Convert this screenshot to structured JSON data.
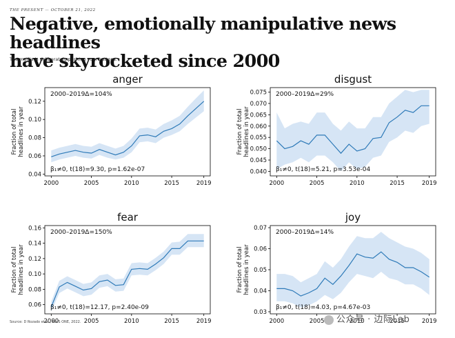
{
  "header": {
    "kicker": "THE PRESENT — OCTOBER 21, 2022",
    "title_line1": "Negative, emotionally manipulative news headlines",
    "title_line2": "have skyrocketed since 2000",
    "subtitle": "The media is deliberately pushing your buttons."
  },
  "source": "Source: D Rozado et al., PLoS ONE, 2022.",
  "watermark": "公众号 · 边际Lab",
  "colors": {
    "line": "#2e7ab8",
    "band": "#cfe0f3",
    "axis": "#000000"
  },
  "chart_data": [
    {
      "type": "line",
      "title": "anger",
      "annotation_top": "2000–2019Δ=104%",
      "annotation_bottom": "β₁≠0, t(18)=9.30, p=1.62e-07",
      "ylabel": "Fraction of total\nheadlines in year",
      "x": [
        2000,
        2001,
        2002,
        2003,
        2004,
        2005,
        2006,
        2007,
        2008,
        2009,
        2010,
        2011,
        2012,
        2013,
        2014,
        2015,
        2016,
        2017,
        2018,
        2019
      ],
      "y": [
        0.059,
        0.062,
        0.064,
        0.066,
        0.064,
        0.063,
        0.067,
        0.064,
        0.061,
        0.064,
        0.071,
        0.082,
        0.083,
        0.081,
        0.087,
        0.09,
        0.095,
        0.104,
        0.112,
        0.12
      ],
      "lower": [
        0.053,
        0.056,
        0.058,
        0.06,
        0.058,
        0.057,
        0.061,
        0.058,
        0.056,
        0.058,
        0.064,
        0.075,
        0.076,
        0.074,
        0.08,
        0.083,
        0.087,
        0.095,
        0.102,
        0.109
      ],
      "upper": [
        0.066,
        0.069,
        0.071,
        0.073,
        0.071,
        0.07,
        0.074,
        0.071,
        0.068,
        0.071,
        0.079,
        0.09,
        0.091,
        0.089,
        0.095,
        0.099,
        0.104,
        0.114,
        0.123,
        0.132
      ],
      "xticks": [
        2000,
        2005,
        2010,
        2015,
        2019
      ],
      "yticks": [
        0.04,
        0.06,
        0.08,
        0.1,
        0.12
      ],
      "ytick_labels": [
        "0.04",
        "0.06",
        "0.08",
        "0.10",
        "0.12"
      ],
      "xlim": [
        1999.2,
        2019.8
      ],
      "ylim": [
        0.038,
        0.135
      ]
    },
    {
      "type": "line",
      "title": "disgust",
      "annotation_top": "2000–2019Δ=29%",
      "annotation_bottom": "β₁≠0, t(18)=5.21, p=3.53e-04",
      "ylabel": "Fraction of total\nheadlines in year",
      "x": [
        2000,
        2001,
        2002,
        2003,
        2004,
        2005,
        2006,
        2007,
        2008,
        2009,
        2010,
        2011,
        2012,
        2013,
        2014,
        2015,
        2016,
        2017,
        2018,
        2019
      ],
      "y": [
        0.0535,
        0.05,
        0.051,
        0.0535,
        0.052,
        0.056,
        0.056,
        0.052,
        0.048,
        0.052,
        0.049,
        0.05,
        0.0545,
        0.055,
        0.0615,
        0.064,
        0.067,
        0.066,
        0.069,
        0.069
      ],
      "lower": [
        0.041,
        0.043,
        0.044,
        0.046,
        0.044,
        0.047,
        0.047,
        0.044,
        0.04,
        0.044,
        0.041,
        0.042,
        0.046,
        0.047,
        0.053,
        0.055,
        0.058,
        0.057,
        0.06,
        0.061
      ],
      "upper": [
        0.066,
        0.059,
        0.061,
        0.062,
        0.061,
        0.066,
        0.066,
        0.061,
        0.058,
        0.062,
        0.059,
        0.059,
        0.064,
        0.064,
        0.07,
        0.073,
        0.076,
        0.075,
        0.076,
        0.076
      ],
      "xticks": [
        2000,
        2005,
        2010,
        2015,
        2019
      ],
      "yticks": [
        0.04,
        0.045,
        0.05,
        0.055,
        0.06,
        0.065,
        0.07,
        0.075
      ],
      "ytick_labels": [
        "0.040",
        "0.045",
        "0.050",
        "0.055",
        "0.060",
        "0.065",
        "0.070",
        "0.075"
      ],
      "xlim": [
        1999.2,
        2019.8
      ],
      "ylim": [
        0.038,
        0.077
      ]
    },
    {
      "type": "line",
      "title": "fear",
      "annotation_top": "2000–2019Δ=150%",
      "annotation_bottom": "β₁≠0, t(18)=12.17, p=2.40e-09",
      "ylabel": "Fraction of total\nheadlines in year",
      "x": [
        2000,
        2001,
        2002,
        2003,
        2004,
        2005,
        2006,
        2007,
        2008,
        2009,
        2010,
        2011,
        2012,
        2013,
        2014,
        2015,
        2016,
        2017,
        2018,
        2019
      ],
      "y": [
        0.057,
        0.083,
        0.089,
        0.084,
        0.079,
        0.081,
        0.09,
        0.092,
        0.085,
        0.086,
        0.106,
        0.107,
        0.106,
        0.113,
        0.121,
        0.133,
        0.133,
        0.143,
        0.143,
        0.143
      ],
      "lower": [
        0.051,
        0.075,
        0.081,
        0.076,
        0.071,
        0.073,
        0.082,
        0.084,
        0.077,
        0.078,
        0.098,
        0.099,
        0.098,
        0.105,
        0.113,
        0.125,
        0.125,
        0.135,
        0.135,
        0.135
      ],
      "upper": [
        0.064,
        0.091,
        0.097,
        0.092,
        0.087,
        0.089,
        0.098,
        0.1,
        0.093,
        0.094,
        0.114,
        0.115,
        0.114,
        0.121,
        0.129,
        0.141,
        0.142,
        0.152,
        0.152,
        0.152
      ],
      "xticks": [
        2000,
        2005,
        2010,
        2015,
        2019
      ],
      "yticks": [
        0.06,
        0.08,
        0.1,
        0.12,
        0.14,
        0.16
      ],
      "ytick_labels": [
        "0.06",
        "0.08",
        "0.10",
        "0.12",
        "0.14",
        "0.16"
      ],
      "xlim": [
        1999.2,
        2019.8
      ],
      "ylim": [
        0.048,
        0.163
      ]
    },
    {
      "type": "line",
      "title": "joy",
      "annotation_top": "2000–2019Δ=14%",
      "annotation_bottom": "β₁≠0, t(18)=4.03, p=4.67e-03",
      "ylabel": "Fraction of total\nheadlines in year",
      "x": [
        2000,
        2001,
        2002,
        2003,
        2004,
        2005,
        2006,
        2007,
        2008,
        2009,
        2010,
        2011,
        2012,
        2013,
        2014,
        2015,
        2016,
        2017,
        2018,
        2019
      ],
      "y": [
        0.041,
        0.041,
        0.04,
        0.0375,
        0.039,
        0.041,
        0.046,
        0.043,
        0.047,
        0.052,
        0.0575,
        0.056,
        0.0555,
        0.0585,
        0.055,
        0.0535,
        0.051,
        0.051,
        0.049,
        0.0465
      ],
      "lower": [
        0.035,
        0.035,
        0.034,
        0.032,
        0.033,
        0.035,
        0.038,
        0.036,
        0.039,
        0.044,
        0.048,
        0.047,
        0.046,
        0.049,
        0.046,
        0.045,
        0.043,
        0.043,
        0.041,
        0.038
      ],
      "upper": [
        0.048,
        0.048,
        0.047,
        0.044,
        0.046,
        0.048,
        0.054,
        0.051,
        0.055,
        0.061,
        0.066,
        0.065,
        0.065,
        0.068,
        0.065,
        0.063,
        0.061,
        0.06,
        0.058,
        0.055
      ],
      "xticks": [
        2000,
        2005,
        2010,
        2015,
        2019
      ],
      "yticks": [
        0.03,
        0.04,
        0.05,
        0.06,
        0.07
      ],
      "ytick_labels": [
        "0.03",
        "0.04",
        "0.05",
        "0.06",
        "0.07"
      ],
      "xlim": [
        1999.2,
        2019.8
      ],
      "ylim": [
        0.029,
        0.071
      ]
    }
  ]
}
